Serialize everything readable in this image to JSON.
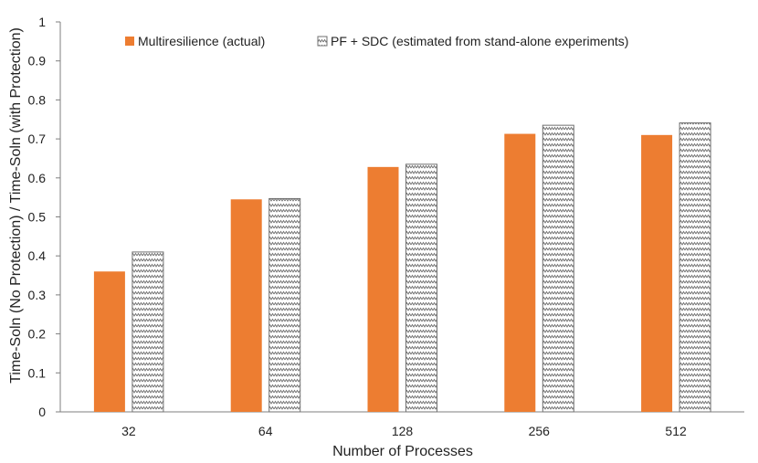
{
  "chart_data": {
    "type": "bar",
    "title": "",
    "xlabel": "Number of Processes",
    "ylabel": "Time-Soln (No Protection) / Time-Soln (with Protection)",
    "categories": [
      "32",
      "64",
      "128",
      "256",
      "512"
    ],
    "ylim": [
      0,
      1
    ],
    "yticks": [
      "0",
      "0.1",
      "0.2",
      "0.3",
      "0.4",
      "0.5",
      "0.6",
      "0.7",
      "0.8",
      "0.9",
      "1"
    ],
    "grid": false,
    "legend_position": "top",
    "series": [
      {
        "name": "Multiresilience (actual)",
        "color": "#ED7D31",
        "pattern": "solid",
        "values": [
          0.36,
          0.545,
          0.628,
          0.713,
          0.71
        ]
      },
      {
        "name": "PF + SDC (estimated from stand-alone experiments)",
        "color": "#808080",
        "pattern": "zigzag",
        "values": [
          0.41,
          0.547,
          0.635,
          0.735,
          0.741
        ]
      }
    ]
  }
}
